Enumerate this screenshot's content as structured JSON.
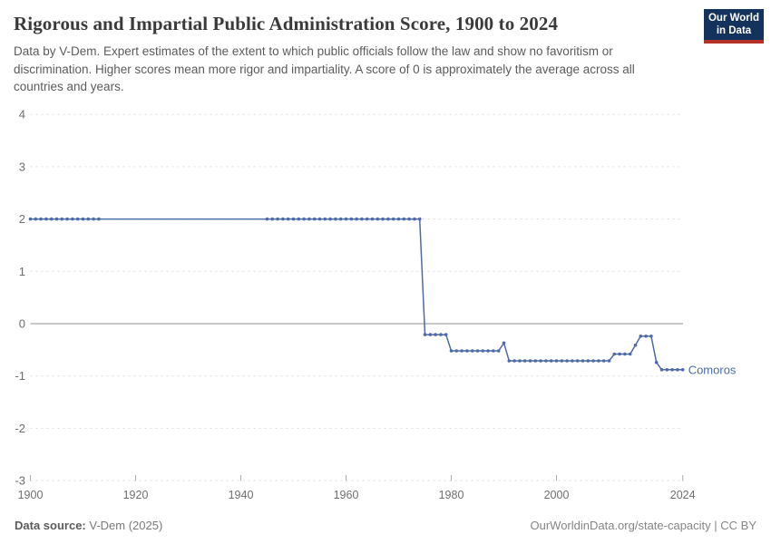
{
  "header": {
    "title": "Rigorous and Impartial Public Administration Score, 1900 to 2024",
    "subtitle": "Data by V-Dem. Expert estimates of the extent to which public officials follow the law and show no favoritism or discrimination. Higher scores mean more rigor and impartiality. A score of 0 is approximately the average across all countries and years.",
    "logo_line1": "Our World",
    "logo_line2": "in Data"
  },
  "footer": {
    "source_label": "Data source:",
    "source_value": "V-Dem (2025)",
    "rights": "OurWorldinData.org/state-capacity | CC BY"
  },
  "chart_data": {
    "type": "line",
    "title": "Rigorous and Impartial Public Administration Score, 1900 to 2024",
    "xlabel": "",
    "ylabel": "",
    "xlim": [
      1900,
      2024
    ],
    "ylim": [
      -3,
      4
    ],
    "x_ticks": [
      1900,
      1920,
      1940,
      1960,
      1980,
      2000,
      2024
    ],
    "y_ticks": [
      4,
      3,
      2,
      1,
      0,
      -1,
      -2,
      -3
    ],
    "grid": "dashed horizontal gridlines, solid zero line",
    "legend_position": "end-of-line label",
    "colors": {
      "line": "#4c6ba8",
      "grid": "#dcdcdc",
      "zero_line": "#a6a6a6",
      "tick_label": "#6e6e6e",
      "tick_mark": "#adadad"
    },
    "series": [
      {
        "name": "Comoros",
        "note": "value segments; markers=false means interpolated span without year dots",
        "segments": [
          {
            "start": 1900,
            "end": 1913,
            "value": 2.0,
            "markers": true
          },
          {
            "start": 1914,
            "end": 1944,
            "value": 2.0,
            "markers": false
          },
          {
            "start": 1945,
            "end": 1974,
            "value": 2.0,
            "markers": true
          },
          {
            "start": 1975,
            "end": 1979,
            "value": -0.21,
            "markers": true
          },
          {
            "start": 1980,
            "end": 1989,
            "value": -0.52,
            "markers": true
          },
          {
            "start": 1990,
            "end": 1990,
            "value": -0.37,
            "markers": true
          },
          {
            "start": 1991,
            "end": 2010,
            "value": -0.71,
            "markers": true
          },
          {
            "start": 2011,
            "end": 2014,
            "value": -0.58,
            "markers": true
          },
          {
            "start": 2015,
            "end": 2015,
            "value": -0.41,
            "markers": true
          },
          {
            "start": 2016,
            "end": 2018,
            "value": -0.24,
            "markers": true
          },
          {
            "start": 2019,
            "end": 2019,
            "value": -0.74,
            "markers": true
          },
          {
            "start": 2020,
            "end": 2024,
            "value": -0.88,
            "markers": true
          }
        ]
      }
    ]
  }
}
